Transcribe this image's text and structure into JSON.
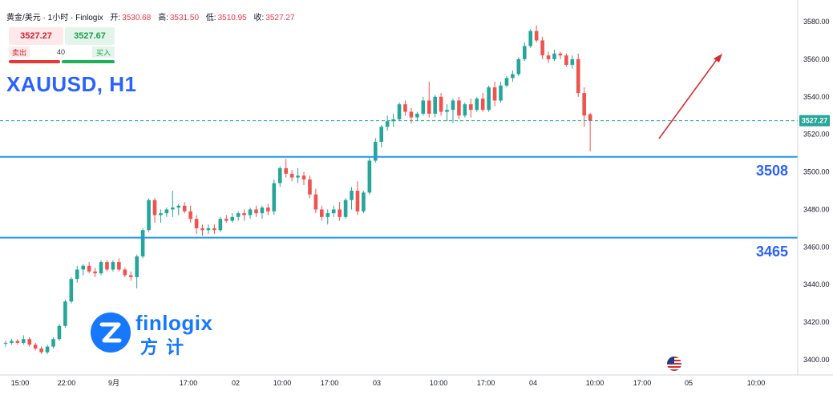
{
  "header": {
    "title": "黄金/美元 · 1小时 · Finlogix",
    "open_label": "开:",
    "open": "3530.68",
    "high_label": "高:",
    "high": "3531.50",
    "low_label": "低:",
    "low": "3510.95",
    "close_label": "收:",
    "close": "3527.27"
  },
  "trade": {
    "sell_price": "3527.27",
    "buy_price": "3527.67",
    "sell_label": "卖出",
    "buy_label": "买入",
    "quantity": "40"
  },
  "symbol": "XAUUSD, H1",
  "logo": {
    "text": "finlogix",
    "cn": "方计"
  },
  "colors": {
    "up": "#26a69a",
    "down": "#ef5350",
    "level_line": "#2196f3",
    "price_line": "#26a69a",
    "arrow": "#d32f2f",
    "label": "#2962ff"
  },
  "chart_data": {
    "type": "candlestick",
    "ylim": [
      3395,
      3588
    ],
    "y_ticks": [
      "3580.00",
      "3560.00",
      "3540.00",
      "3520.00",
      "3500.00",
      "3480.00",
      "3460.00",
      "3440.00",
      "3420.00",
      "3400.00"
    ],
    "x_ticks": [
      "15:00",
      "22:00",
      "9月",
      "17:00",
      "02",
      "10:00",
      "17:00",
      "03",
      "10:00",
      "17:00",
      "04",
      "10:00",
      "17:00",
      "05",
      "10:00"
    ],
    "current_price": "3527.27",
    "levels": [
      {
        "value": 3508,
        "label": "3508"
      },
      {
        "value": 3465,
        "label": "3465"
      }
    ],
    "candles": [
      [
        3409,
        3410,
        3407,
        3409
      ],
      [
        3409,
        3411,
        3408,
        3410
      ],
      [
        3410,
        3411,
        3408,
        3409
      ],
      [
        3409,
        3413,
        3408,
        3411
      ],
      [
        3411,
        3412,
        3407,
        3408
      ],
      [
        3408,
        3409,
        3405,
        3406
      ],
      [
        3406,
        3407,
        3403,
        3404
      ],
      [
        3404,
        3408,
        3403,
        3407
      ],
      [
        3407,
        3412,
        3406,
        3411
      ],
      [
        3411,
        3419,
        3410,
        3418
      ],
      [
        3418,
        3432,
        3417,
        3431
      ],
      [
        3431,
        3444,
        3430,
        3443
      ],
      [
        3443,
        3450,
        3441,
        3448
      ],
      [
        3448,
        3451,
        3445,
        3450
      ],
      [
        3450,
        3452,
        3446,
        3447
      ],
      [
        3447,
        3449,
        3444,
        3446
      ],
      [
        3446,
        3453,
        3445,
        3452
      ],
      [
        3452,
        3453,
        3447,
        3448
      ],
      [
        3448,
        3453,
        3447,
        3452
      ],
      [
        3452,
        3454,
        3447,
        3448
      ],
      [
        3448,
        3449,
        3444,
        3445
      ],
      [
        3445,
        3447,
        3442,
        3444
      ],
      [
        3444,
        3456,
        3438,
        3455
      ],
      [
        3455,
        3470,
        3454,
        3469
      ],
      [
        3469,
        3486,
        3468,
        3485
      ],
      [
        3485,
        3486,
        3473,
        3477
      ],
      [
        3477,
        3480,
        3473,
        3478
      ],
      [
        3478,
        3481,
        3476,
        3480
      ],
      [
        3480,
        3490,
        3476,
        3481
      ],
      [
        3481,
        3483,
        3477,
        3482
      ],
      [
        3482,
        3484,
        3478,
        3479
      ],
      [
        3479,
        3482,
        3473,
        3475
      ],
      [
        3475,
        3477,
        3467,
        3470
      ],
      [
        3470,
        3472,
        3466,
        3469
      ],
      [
        3469,
        3472,
        3467,
        3470
      ],
      [
        3470,
        3472,
        3467,
        3469
      ],
      [
        3469,
        3476,
        3468,
        3475
      ],
      [
        3475,
        3477,
        3473,
        3474
      ],
      [
        3474,
        3478,
        3473,
        3476
      ],
      [
        3476,
        3479,
        3474,
        3478
      ],
      [
        3478,
        3480,
        3474,
        3477
      ],
      [
        3477,
        3481,
        3475,
        3480
      ],
      [
        3480,
        3482,
        3476,
        3478
      ],
      [
        3478,
        3482,
        3475,
        3481
      ],
      [
        3481,
        3483,
        3477,
        3479
      ],
      [
        3479,
        3496,
        3477,
        3494
      ],
      [
        3494,
        3503,
        3492,
        3502
      ],
      [
        3502,
        3507,
        3497,
        3499
      ],
      [
        3499,
        3501,
        3495,
        3497
      ],
      [
        3497,
        3502,
        3494,
        3498
      ],
      [
        3498,
        3500,
        3493,
        3496
      ],
      [
        3496,
        3498,
        3486,
        3488
      ],
      [
        3488,
        3491,
        3478,
        3480
      ],
      [
        3480,
        3482,
        3474,
        3476
      ],
      [
        3476,
        3480,
        3472,
        3478
      ],
      [
        3478,
        3482,
        3476,
        3480
      ],
      [
        3480,
        3484,
        3474,
        3476
      ],
      [
        3476,
        3486,
        3475,
        3485
      ],
      [
        3485,
        3492,
        3480,
        3490
      ],
      [
        3490,
        3495,
        3477,
        3479
      ],
      [
        3479,
        3490,
        3478,
        3489
      ],
      [
        3489,
        3508,
        3488,
        3506
      ],
      [
        3506,
        3518,
        3505,
        3516
      ],
      [
        3516,
        3525,
        3513,
        3524
      ],
      [
        3524,
        3530,
        3522,
        3527
      ],
      [
        3527,
        3531,
        3524,
        3528
      ],
      [
        3528,
        3537,
        3527,
        3536
      ],
      [
        3536,
        3538,
        3530,
        3532
      ],
      [
        3532,
        3534,
        3526,
        3529
      ],
      [
        3529,
        3532,
        3527,
        3531
      ],
      [
        3531,
        3540,
        3530,
        3538
      ],
      [
        3538,
        3548,
        3529,
        3531
      ],
      [
        3531,
        3541,
        3529,
        3540
      ],
      [
        3540,
        3542,
        3530,
        3532
      ],
      [
        3532,
        3536,
        3527,
        3533
      ],
      [
        3533,
        3539,
        3526,
        3538
      ],
      [
        3538,
        3540,
        3528,
        3530
      ],
      [
        3530,
        3537,
        3529,
        3536
      ],
      [
        3536,
        3539,
        3529,
        3533
      ],
      [
        3533,
        3540,
        3532,
        3539
      ],
      [
        3539,
        3542,
        3532,
        3533
      ],
      [
        3533,
        3546,
        3532,
        3545
      ],
      [
        3545,
        3548,
        3535,
        3538
      ],
      [
        3538,
        3548,
        3537,
        3546
      ],
      [
        3546,
        3551,
        3545,
        3550
      ],
      [
        3550,
        3554,
        3548,
        3552
      ],
      [
        3552,
        3561,
        3551,
        3560
      ],
      [
        3560,
        3569,
        3559,
        3567
      ],
      [
        3567,
        3576,
        3566,
        3575
      ],
      [
        3575,
        3578,
        3569,
        3570
      ],
      [
        3570,
        3572,
        3560,
        3562
      ],
      [
        3562,
        3564,
        3558,
        3560
      ],
      [
        3560,
        3565,
        3559,
        3563
      ],
      [
        3563,
        3564,
        3560,
        3562
      ],
      [
        3562,
        3563,
        3556,
        3557
      ],
      [
        3557,
        3562,
        3555,
        3560
      ],
      [
        3560,
        3563,
        3540,
        3542
      ],
      [
        3542,
        3545,
        3524,
        3530
      ],
      [
        3530.68,
        3531.5,
        3510.95,
        3527.27
      ]
    ]
  }
}
